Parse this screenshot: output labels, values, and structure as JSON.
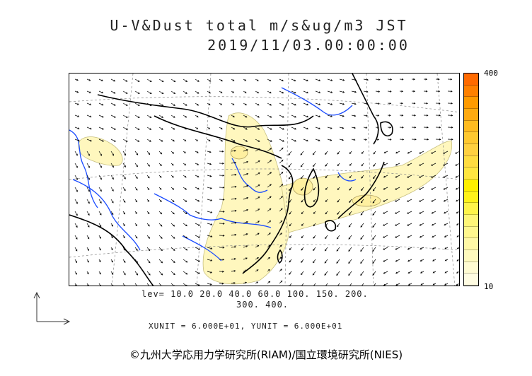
{
  "title": {
    "line1": "U-V&Dust total m/s&ug/m3 JST",
    "line2": "2019/11/03.00:00:00"
  },
  "colorbar": {
    "max_label": "400",
    "min_label": "10",
    "colors": [
      "#ff6a00",
      "#ff8000",
      "#ff9a00",
      "#ffaa10",
      "#ffbb20",
      "#ffc830",
      "#ffd040",
      "#ffdc40",
      "#ffe640",
      "#fff000",
      "#fff21a",
      "#fff44a",
      "#fff678",
      "#fff78e",
      "#fff8a6",
      "#fffabe",
      "#fffbd2",
      "#fffce2"
    ]
  },
  "levels": {
    "line1": "lev= 10.0 20.0 40.0 60.0 100. 150. 200.",
    "line2": "300. 400."
  },
  "units": "XUNIT = 6.000E+01, YUNIT = 6.000E+01",
  "credit": "©九州大学応用力学研究所(RIAM)/国立環境研究所(NIES)",
  "map_colors": {
    "dust_light": "#fff7be",
    "dust_mid": "#fff0a0",
    "coast": "#000000",
    "river": "#1a4bff",
    "grid": "#888888",
    "wind": "#000000"
  }
}
